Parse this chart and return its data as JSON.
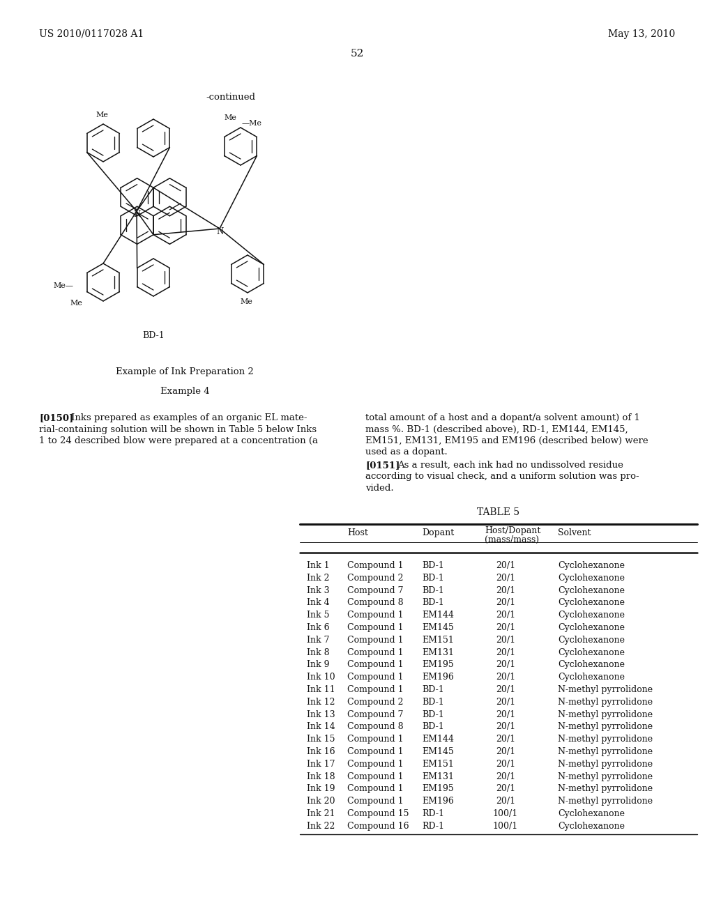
{
  "bg_color": "#ffffff",
  "header_left": "US 2010/0117028 A1",
  "header_right": "May 13, 2010",
  "page_number": "52",
  "continued_text": "-continued",
  "bd1_label": "BD-1",
  "section_title1": "Example of Ink Preparation 2",
  "section_title2": "Example 4",
  "table_title": "TABLE 5",
  "col_headers": [
    "",
    "Host",
    "Dopant",
    "Host/Dopant\n(mass/mass)",
    "Solvent"
  ],
  "table_data": [
    [
      "Ink 1",
      "Compound 1",
      "BD-1",
      "20/1",
      "Cyclohexanone"
    ],
    [
      "Ink 2",
      "Compound 2",
      "BD-1",
      "20/1",
      "Cyclohexanone"
    ],
    [
      "Ink 3",
      "Compound 7",
      "BD-1",
      "20/1",
      "Cyclohexanone"
    ],
    [
      "Ink 4",
      "Compound 8",
      "BD-1",
      "20/1",
      "Cyclohexanone"
    ],
    [
      "Ink 5",
      "Compound 1",
      "EM144",
      "20/1",
      "Cyclohexanone"
    ],
    [
      "Ink 6",
      "Compound 1",
      "EM145",
      "20/1",
      "Cyclohexanone"
    ],
    [
      "Ink 7",
      "Compound 1",
      "EM151",
      "20/1",
      "Cyclohexanone"
    ],
    [
      "Ink 8",
      "Compound 1",
      "EM131",
      "20/1",
      "Cyclohexanone"
    ],
    [
      "Ink 9",
      "Compound 1",
      "EM195",
      "20/1",
      "Cyclohexanone"
    ],
    [
      "Ink 10",
      "Compound 1",
      "EM196",
      "20/1",
      "Cyclohexanone"
    ],
    [
      "Ink 11",
      "Compound 1",
      "BD-1",
      "20/1",
      "N-methyl pyrrolidone"
    ],
    [
      "Ink 12",
      "Compound 2",
      "BD-1",
      "20/1",
      "N-methyl pyrrolidone"
    ],
    [
      "Ink 13",
      "Compound 7",
      "BD-1",
      "20/1",
      "N-methyl pyrrolidone"
    ],
    [
      "Ink 14",
      "Compound 8",
      "BD-1",
      "20/1",
      "N-methyl pyrrolidone"
    ],
    [
      "Ink 15",
      "Compound 1",
      "EM144",
      "20/1",
      "N-methyl pyrrolidone"
    ],
    [
      "Ink 16",
      "Compound 1",
      "EM145",
      "20/1",
      "N-methyl pyrrolidone"
    ],
    [
      "Ink 17",
      "Compound 1",
      "EM151",
      "20/1",
      "N-methyl pyrrolidone"
    ],
    [
      "Ink 18",
      "Compound 1",
      "EM131",
      "20/1",
      "N-methyl pyrrolidone"
    ],
    [
      "Ink 19",
      "Compound 1",
      "EM195",
      "20/1",
      "N-methyl pyrrolidone"
    ],
    [
      "Ink 20",
      "Compound 1",
      "EM196",
      "20/1",
      "N-methyl pyrrolidone"
    ],
    [
      "Ink 21",
      "Compound 15",
      "RD-1",
      "100/1",
      "Cyclohexanone"
    ],
    [
      "Ink 22",
      "Compound 16",
      "RD-1",
      "100/1",
      "Cyclohexanone"
    ]
  ],
  "para150_left": [
    "[0150]   Inks prepared as examples of an organic EL mate-",
    "rial-containing solution will be shown in Table 5 below Inks",
    "1 to 24 described blow were prepared at a concentration (a"
  ],
  "para150_right": [
    "total amount of a host and a dopant/a solvent amount) of 1",
    "mass %. BD-1 (described above), RD-1, EM144, EM145,",
    "EM151, EM131, EM195 and EM196 (described below) were",
    "used as a dopant."
  ],
  "para151_right": [
    "[0151]   As a result, each ink had no undissolved residue",
    "according to visual check, and a uniform solution was pro-",
    "vided."
  ]
}
